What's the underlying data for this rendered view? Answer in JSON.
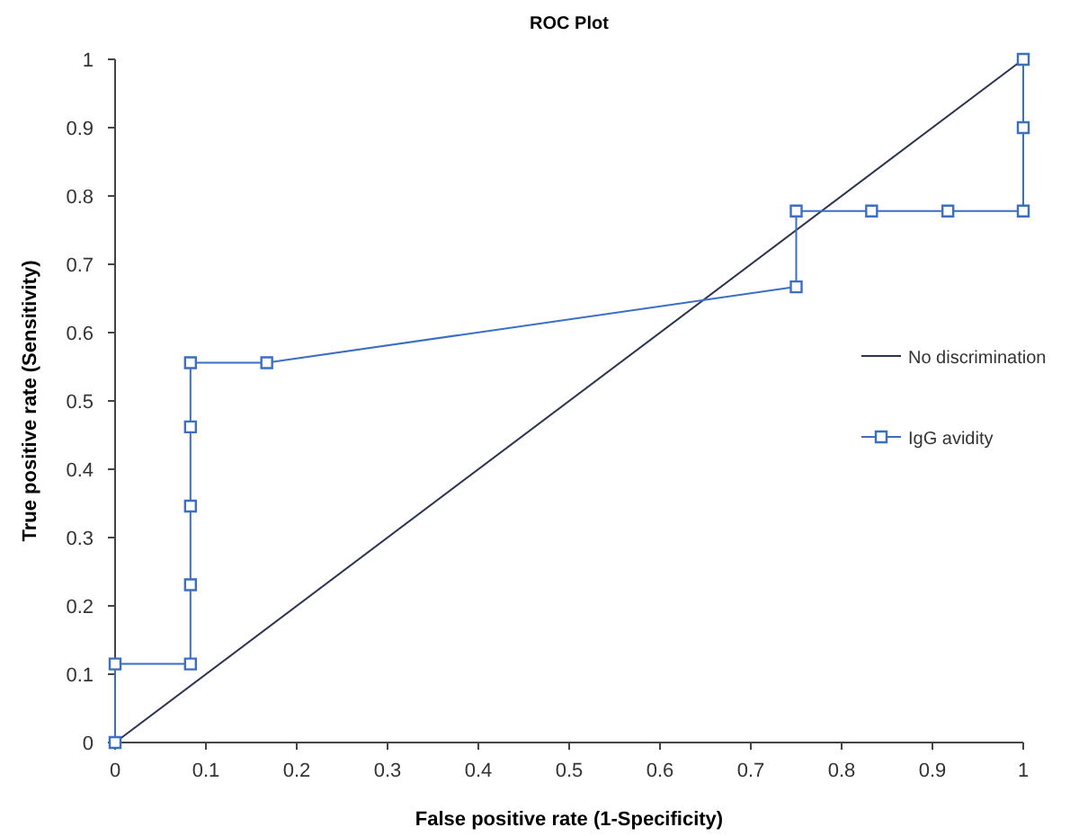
{
  "chart_data": {
    "type": "line",
    "title": "ROC Plot",
    "xlabel": "False positive rate (1-Specificity)",
    "ylabel": "True positive rate (Sensitivity)",
    "xlim": [
      0,
      1
    ],
    "ylim": [
      0,
      1
    ],
    "xticks": [
      0,
      0.1,
      0.2,
      0.3,
      0.4,
      0.5,
      0.6,
      0.7,
      0.8,
      0.9,
      1
    ],
    "yticks": [
      0,
      0.1,
      0.2,
      0.3,
      0.4,
      0.5,
      0.6,
      0.7,
      0.8,
      0.9,
      1
    ],
    "grid": false,
    "legend": "right",
    "series": [
      {
        "name": "No discrimination",
        "color": "#2b3350",
        "marker": "none",
        "x": [
          0,
          1
        ],
        "values": [
          0,
          1
        ]
      },
      {
        "name": "IgG avidity",
        "color": "#3a6fc4",
        "marker": "square",
        "x": [
          0,
          0,
          0.083,
          0.083,
          0.083,
          0.083,
          0.083,
          0.167,
          0.75,
          0.75,
          0.833,
          0.917,
          1,
          1,
          1
        ],
        "values": [
          0,
          0.115,
          0.115,
          0.231,
          0.346,
          0.462,
          0.556,
          0.556,
          0.667,
          0.778,
          0.778,
          0.778,
          0.778,
          0.9,
          1
        ]
      }
    ]
  }
}
